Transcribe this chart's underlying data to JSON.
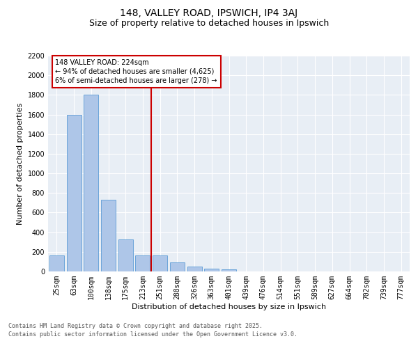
{
  "title1": "148, VALLEY ROAD, IPSWICH, IP4 3AJ",
  "title2": "Size of property relative to detached houses in Ipswich",
  "xlabel": "Distribution of detached houses by size in Ipswich",
  "ylabel": "Number of detached properties",
  "categories": [
    "25sqm",
    "63sqm",
    "100sqm",
    "138sqm",
    "175sqm",
    "213sqm",
    "251sqm",
    "288sqm",
    "326sqm",
    "363sqm",
    "401sqm",
    "439sqm",
    "476sqm",
    "514sqm",
    "551sqm",
    "589sqm",
    "627sqm",
    "664sqm",
    "702sqm",
    "739sqm",
    "777sqm"
  ],
  "values": [
    160,
    1600,
    1800,
    730,
    330,
    160,
    160,
    90,
    50,
    30,
    20,
    0,
    0,
    0,
    0,
    0,
    0,
    0,
    0,
    0,
    0
  ],
  "bar_color": "#aec6e8",
  "bar_edgecolor": "#5b9bd5",
  "vline_x": 5.5,
  "vline_color": "#cc0000",
  "annotation_text": "148 VALLEY ROAD: 224sqm\n← 94% of detached houses are smaller (4,625)\n6% of semi-detached houses are larger (278) →",
  "annotation_box_color": "#ffffff",
  "annotation_box_edgecolor": "#cc0000",
  "ylim": [
    0,
    2200
  ],
  "yticks": [
    0,
    200,
    400,
    600,
    800,
    1000,
    1200,
    1400,
    1600,
    1800,
    2000,
    2200
  ],
  "bg_color": "#e8eef5",
  "grid_color": "#ffffff",
  "footer": "Contains HM Land Registry data © Crown copyright and database right 2025.\nContains public sector information licensed under the Open Government Licence v3.0.",
  "title1_fontsize": 10,
  "title2_fontsize": 9,
  "axis_label_fontsize": 8,
  "tick_fontsize": 7,
  "footer_fontsize": 6,
  "annotation_fontsize": 7
}
